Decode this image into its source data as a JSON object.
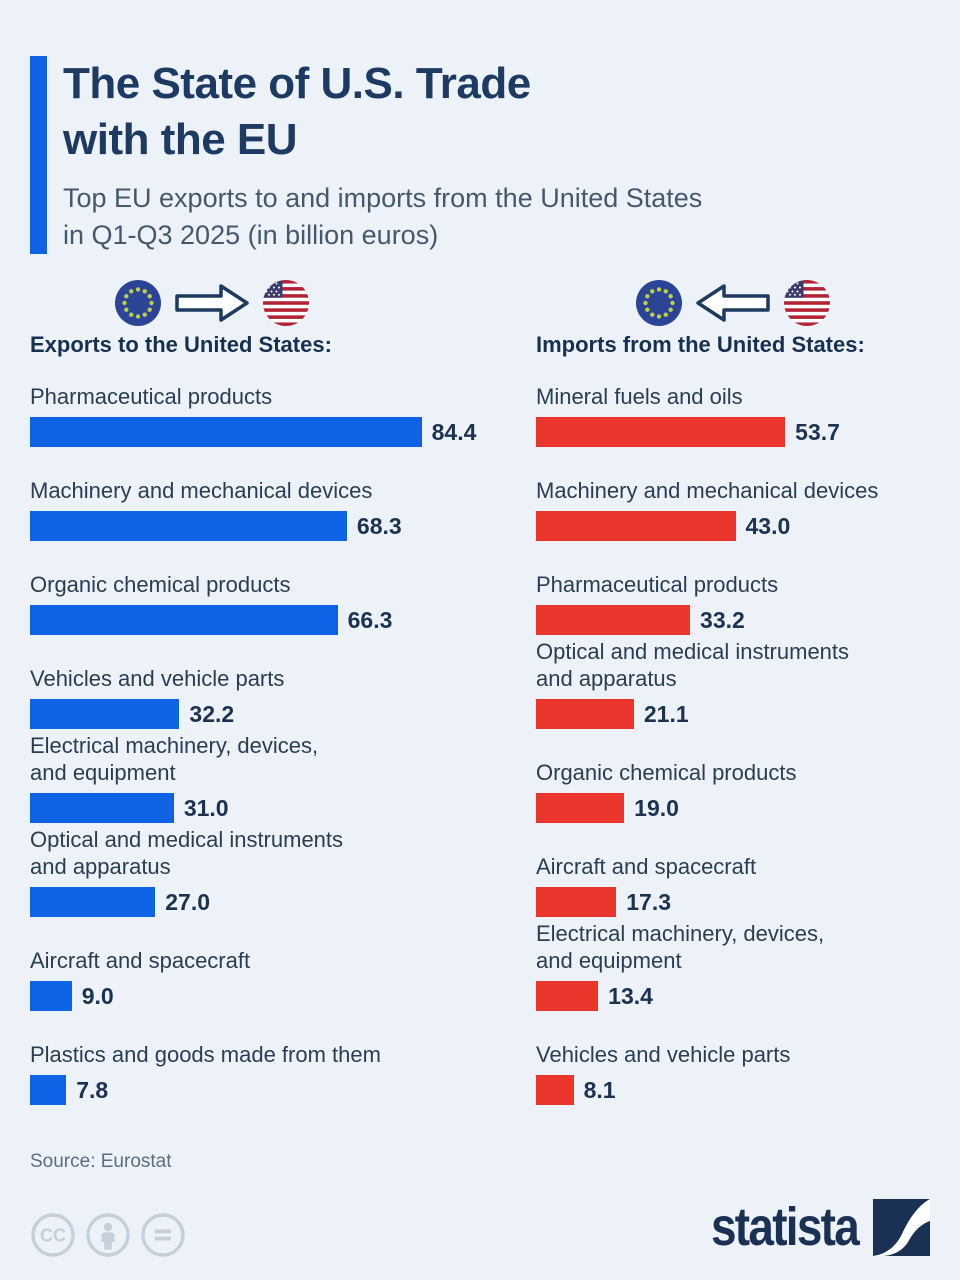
{
  "header": {
    "title": "The State of U.S. Trade\nwith the EU",
    "subtitle": "Top EU exports to and imports from the United States\nin Q1-Q3 2025 (in billion euros)"
  },
  "colors": {
    "background": "#edf2f8",
    "accent_blue": "#0d63e3",
    "export_bar_blue": "#0d63e3",
    "import_bar_red": "#e9352b",
    "title_navy": "#1d3a63",
    "label_slate": "#2b3d52",
    "source_gray": "#5b6d80",
    "license_gray": "#c6d0da"
  },
  "icons": {
    "eu_flag": "eu-flag-icon",
    "us_flag": "us-flag-icon",
    "arrow_right": "arrow-right-icon",
    "arrow_left": "arrow-left-icon",
    "cc": "cc-icon",
    "attribution": "attribution-person-icon",
    "equals": "equals-icon",
    "statista_mark": "statista-logo-icon"
  },
  "columns": {
    "exports": {
      "heading": "Exports to the United States:",
      "items": [
        {
          "label": "Pharmaceutical products",
          "value": 84.4,
          "value_display": "84.4"
        },
        {
          "label": "Machinery and mechanical devices",
          "value": 68.3,
          "value_display": "68.3"
        },
        {
          "label": "Organic chemical products",
          "value": 66.3,
          "value_display": "66.3"
        },
        {
          "label": "Vehicles and vehicle parts",
          "value": 32.2,
          "value_display": "32.2"
        },
        {
          "label": "Electrical machinery, devices,\nand equipment",
          "value": 31.0,
          "value_display": "31.0"
        },
        {
          "label": "Optical and medical instruments\nand apparatus",
          "value": 27.0,
          "value_display": "27.0"
        },
        {
          "label": "Aircraft and spacecraft",
          "value": 9.0,
          "value_display": "9.0"
        },
        {
          "label": "Plastics and goods made from them",
          "value": 7.8,
          "value_display": "7.8"
        }
      ]
    },
    "imports": {
      "heading": "Imports from the United States:",
      "items": [
        {
          "label": "Mineral fuels and oils",
          "value": 53.7,
          "value_display": "53.7"
        },
        {
          "label": "Machinery and mechanical devices",
          "value": 43.0,
          "value_display": "43.0"
        },
        {
          "label": "Pharmaceutical products",
          "value": 33.2,
          "value_display": "33.2"
        },
        {
          "label": "Optical and medical instruments\nand apparatus",
          "value": 21.1,
          "value_display": "21.1"
        },
        {
          "label": "Organic chemical products",
          "value": 19.0,
          "value_display": "19.0"
        },
        {
          "label": "Aircraft and spacecraft",
          "value": 17.3,
          "value_display": "17.3"
        },
        {
          "label": "Electrical machinery, devices,\nand equipment",
          "value": 13.4,
          "value_display": "13.4"
        },
        {
          "label": "Vehicles and vehicle parts",
          "value": 8.1,
          "value_display": "8.1"
        }
      ]
    }
  },
  "chart_data": [
    {
      "type": "bar",
      "orientation": "horizontal",
      "title": "Exports to the United States",
      "unit": "billion euros",
      "period": "Q1-Q3 2025",
      "color": "#0d63e3",
      "xlim": [
        0,
        90
      ],
      "categories": [
        "Pharmaceutical products",
        "Machinery and mechanical devices",
        "Organic chemical products",
        "Vehicles and vehicle parts",
        "Electrical machinery, devices, and equipment",
        "Optical and medical instruments and apparatus",
        "Aircraft and spacecraft",
        "Plastics and goods made from them"
      ],
      "values": [
        84.4,
        68.3,
        66.3,
        32.2,
        31.0,
        27.0,
        9.0,
        7.8
      ]
    },
    {
      "type": "bar",
      "orientation": "horizontal",
      "title": "Imports from the United States",
      "unit": "billion euros",
      "period": "Q1-Q3 2025",
      "color": "#e9352b",
      "xlim": [
        0,
        90
      ],
      "categories": [
        "Mineral fuels and oils",
        "Machinery and mechanical devices",
        "Pharmaceutical products",
        "Optical and medical instruments and apparatus",
        "Organic chemical products",
        "Aircraft and spacecraft",
        "Electrical machinery, devices, and equipment",
        "Vehicles and vehicle parts"
      ],
      "values": [
        53.7,
        43.0,
        33.2,
        21.1,
        19.0,
        17.3,
        13.4,
        8.1
      ]
    }
  ],
  "footer": {
    "source": "Source: Eurostat",
    "logo_text": "statista"
  }
}
